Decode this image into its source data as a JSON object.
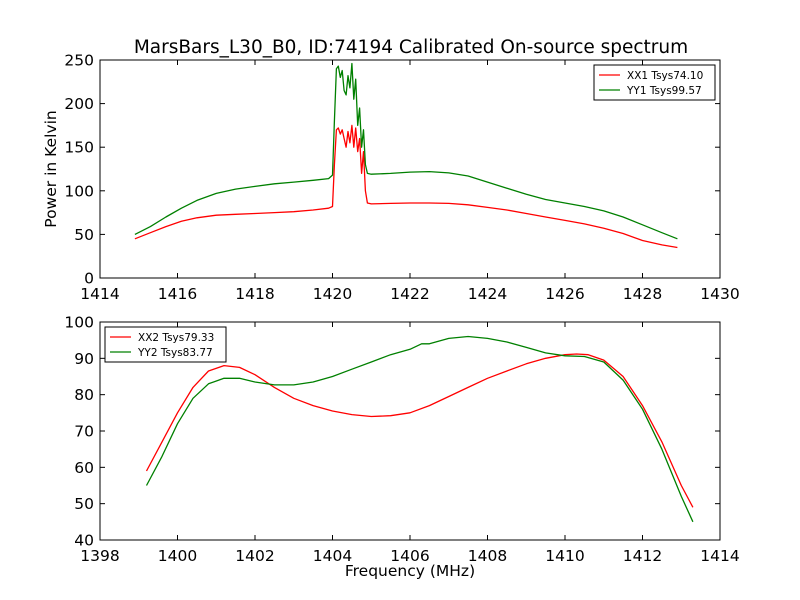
{
  "title": "MarsBars_L30_B0, ID:74194 Calibrated On-source spectrum",
  "colors": {
    "xx": "#ff0000",
    "yy": "#008000",
    "axes": "#000000",
    "background": "#ffffff"
  },
  "chart_data": [
    {
      "type": "line",
      "title": "MarsBars_L30_B0, ID:74194 Calibrated On-source spectrum",
      "xlabel": "",
      "ylabel": "Power in Kelvin",
      "xlim": [
        1414,
        1430
      ],
      "ylim": [
        0,
        250
      ],
      "xticks": [
        "1414",
        "1416",
        "1418",
        "1420",
        "1422",
        "1424",
        "1426",
        "1428",
        "1430"
      ],
      "yticks": [
        "0",
        "50",
        "100",
        "150",
        "200",
        "250"
      ],
      "grid": false,
      "legend_position": "top-right",
      "series": [
        {
          "name": "XX1 Tsys74.10",
          "color": "#ff0000",
          "x": [
            1414.9,
            1415.3,
            1415.7,
            1416.1,
            1416.5,
            1417.0,
            1417.5,
            1418.0,
            1418.5,
            1419.0,
            1419.5,
            1419.9,
            1420.0,
            1420.05,
            1420.1,
            1420.15,
            1420.2,
            1420.25,
            1420.3,
            1420.35,
            1420.4,
            1420.45,
            1420.5,
            1420.55,
            1420.6,
            1420.65,
            1420.7,
            1420.75,
            1420.8,
            1420.85,
            1420.9,
            1421.0,
            1421.5,
            1422.0,
            1422.5,
            1423.0,
            1423.5,
            1424.0,
            1424.5,
            1425.0,
            1425.5,
            1426.0,
            1426.5,
            1427.0,
            1427.5,
            1428.0,
            1428.5,
            1428.9
          ],
          "y": [
            45,
            52,
            59,
            65,
            69,
            72,
            73,
            74,
            75,
            76,
            78,
            80,
            82,
            130,
            170,
            172,
            165,
            170,
            160,
            150,
            168,
            155,
            175,
            150,
            172,
            145,
            160,
            120,
            145,
            100,
            86,
            85,
            85.5,
            86,
            86,
            85.5,
            84,
            81,
            78,
            74,
            70,
            66,
            62,
            57,
            51,
            43,
            38,
            35
          ]
        },
        {
          "name": "YY1 Tsys99.57",
          "color": "#008000",
          "x": [
            1414.9,
            1415.3,
            1415.7,
            1416.1,
            1416.5,
            1417.0,
            1417.5,
            1418.0,
            1418.5,
            1419.0,
            1419.5,
            1419.9,
            1420.0,
            1420.05,
            1420.1,
            1420.15,
            1420.2,
            1420.25,
            1420.3,
            1420.35,
            1420.4,
            1420.45,
            1420.5,
            1420.55,
            1420.6,
            1420.65,
            1420.7,
            1420.75,
            1420.8,
            1420.85,
            1420.9,
            1421.0,
            1421.5,
            1422.0,
            1422.5,
            1423.0,
            1423.5,
            1424.0,
            1424.5,
            1425.0,
            1425.5,
            1426.0,
            1426.5,
            1427.0,
            1427.5,
            1428.0,
            1428.5,
            1428.9
          ],
          "y": [
            50,
            59,
            70,
            80,
            89,
            97,
            102,
            105,
            108,
            110,
            112,
            114,
            118,
            180,
            240,
            243,
            230,
            238,
            215,
            210,
            232,
            218,
            246,
            205,
            228,
            175,
            195,
            150,
            170,
            130,
            120,
            119,
            120,
            121.5,
            122,
            120.5,
            117,
            110,
            103,
            96,
            90,
            86,
            82,
            77,
            70,
            61,
            52,
            45
          ]
        }
      ]
    },
    {
      "type": "line",
      "title": "",
      "xlabel": "Frequency (MHz)",
      "ylabel": "",
      "xlim": [
        1398,
        1414
      ],
      "ylim": [
        40,
        100
      ],
      "xticks": [
        "1398",
        "1400",
        "1402",
        "1404",
        "1406",
        "1408",
        "1410",
        "1412",
        "1414"
      ],
      "yticks": [
        "40",
        "50",
        "60",
        "70",
        "80",
        "90",
        "100"
      ],
      "grid": false,
      "legend_position": "top-left",
      "series": [
        {
          "name": "XX2 Tsys79.33",
          "color": "#ff0000",
          "x": [
            1399.2,
            1399.6,
            1400.0,
            1400.4,
            1400.8,
            1401.2,
            1401.6,
            1402.0,
            1402.5,
            1403.0,
            1403.5,
            1404.0,
            1404.5,
            1405.0,
            1405.5,
            1406.0,
            1406.5,
            1407.0,
            1407.5,
            1408.0,
            1408.5,
            1409.0,
            1409.5,
            1410.0,
            1410.3,
            1410.6,
            1411.0,
            1411.5,
            1412.0,
            1412.5,
            1413.0,
            1413.3
          ],
          "y": [
            59,
            67,
            75,
            82,
            86.5,
            88,
            87.5,
            85.5,
            82,
            79,
            77,
            75.5,
            74.5,
            74,
            74.2,
            75,
            77,
            79.5,
            82,
            84.5,
            86.5,
            88.5,
            90,
            91,
            91.2,
            91,
            89.5,
            85,
            77,
            67,
            55,
            49
          ]
        },
        {
          "name": "YY2 Tsys83.77",
          "color": "#008000",
          "x": [
            1399.2,
            1399.6,
            1400.0,
            1400.4,
            1400.8,
            1401.2,
            1401.6,
            1402.0,
            1402.5,
            1403.0,
            1403.5,
            1404.0,
            1404.5,
            1405.0,
            1405.5,
            1406.0,
            1406.3,
            1406.5,
            1407.0,
            1407.5,
            1408.0,
            1408.5,
            1409.0,
            1409.5,
            1410.0,
            1410.5,
            1411.0,
            1411.5,
            1412.0,
            1412.5,
            1413.0,
            1413.3
          ],
          "y": [
            55,
            63,
            72,
            79,
            83,
            84.5,
            84.5,
            83.5,
            82.7,
            82.7,
            83.5,
            85,
            87,
            89,
            91,
            92.5,
            94,
            94,
            95.5,
            96,
            95.5,
            94.5,
            93,
            91.5,
            90.7,
            90.5,
            89,
            84,
            76,
            65,
            52,
            45
          ]
        }
      ]
    }
  ]
}
